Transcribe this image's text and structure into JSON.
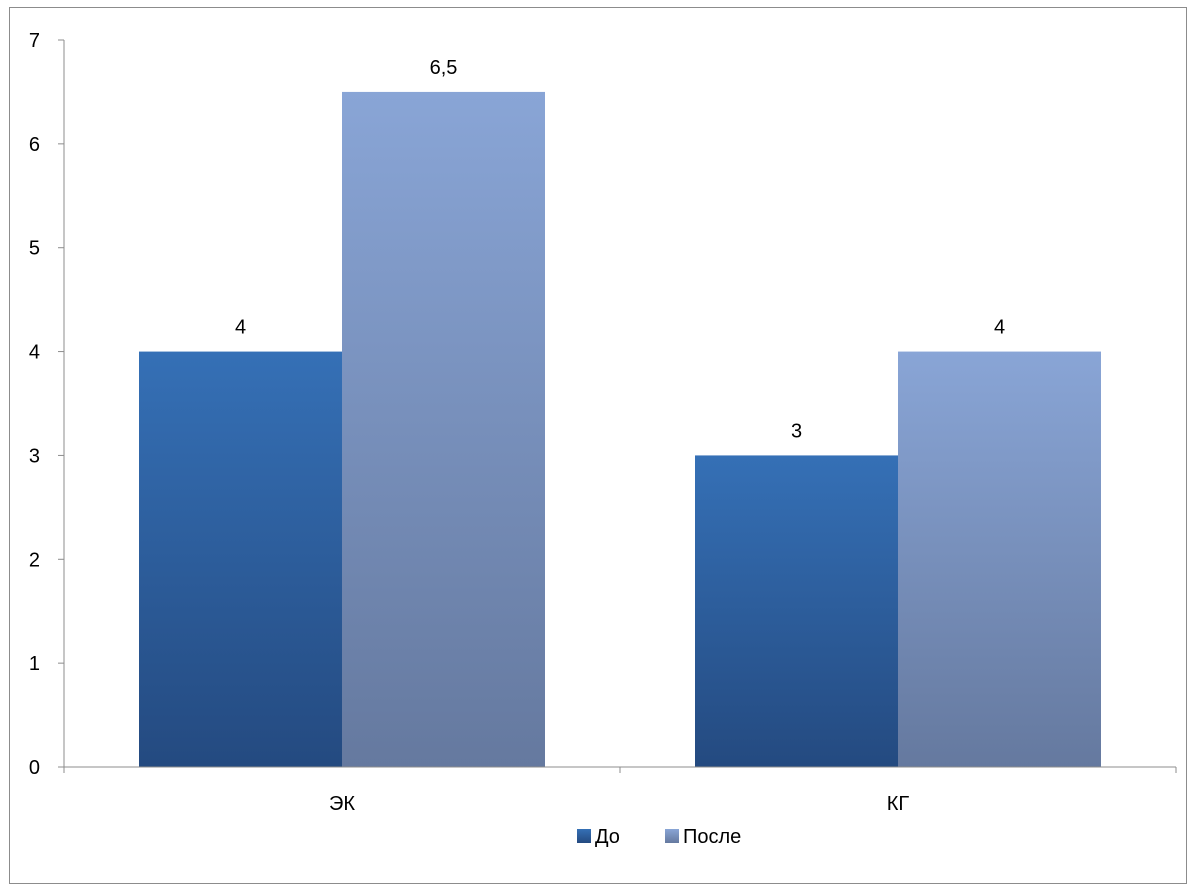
{
  "chart_data": {
    "type": "bar",
    "categories": [
      "ЭК",
      "КГ"
    ],
    "series": [
      {
        "name": "До",
        "values": [
          4,
          3
        ],
        "color_top": "#3570B6",
        "color_bottom": "#244A80"
      },
      {
        "name": "После",
        "values": [
          6.5,
          4
        ],
        "color_top": "#89A5D6",
        "color_bottom": "#65799F"
      }
    ],
    "data_labels": [
      [
        "4",
        "3"
      ],
      [
        "6,5",
        "4"
      ]
    ],
    "yticks": [
      0,
      1,
      2,
      3,
      4,
      5,
      6,
      7
    ],
    "ylim": [
      0,
      7
    ],
    "grid": false,
    "legend_position": "bottom",
    "title": "",
    "xlabel": "",
    "ylabel": ""
  }
}
